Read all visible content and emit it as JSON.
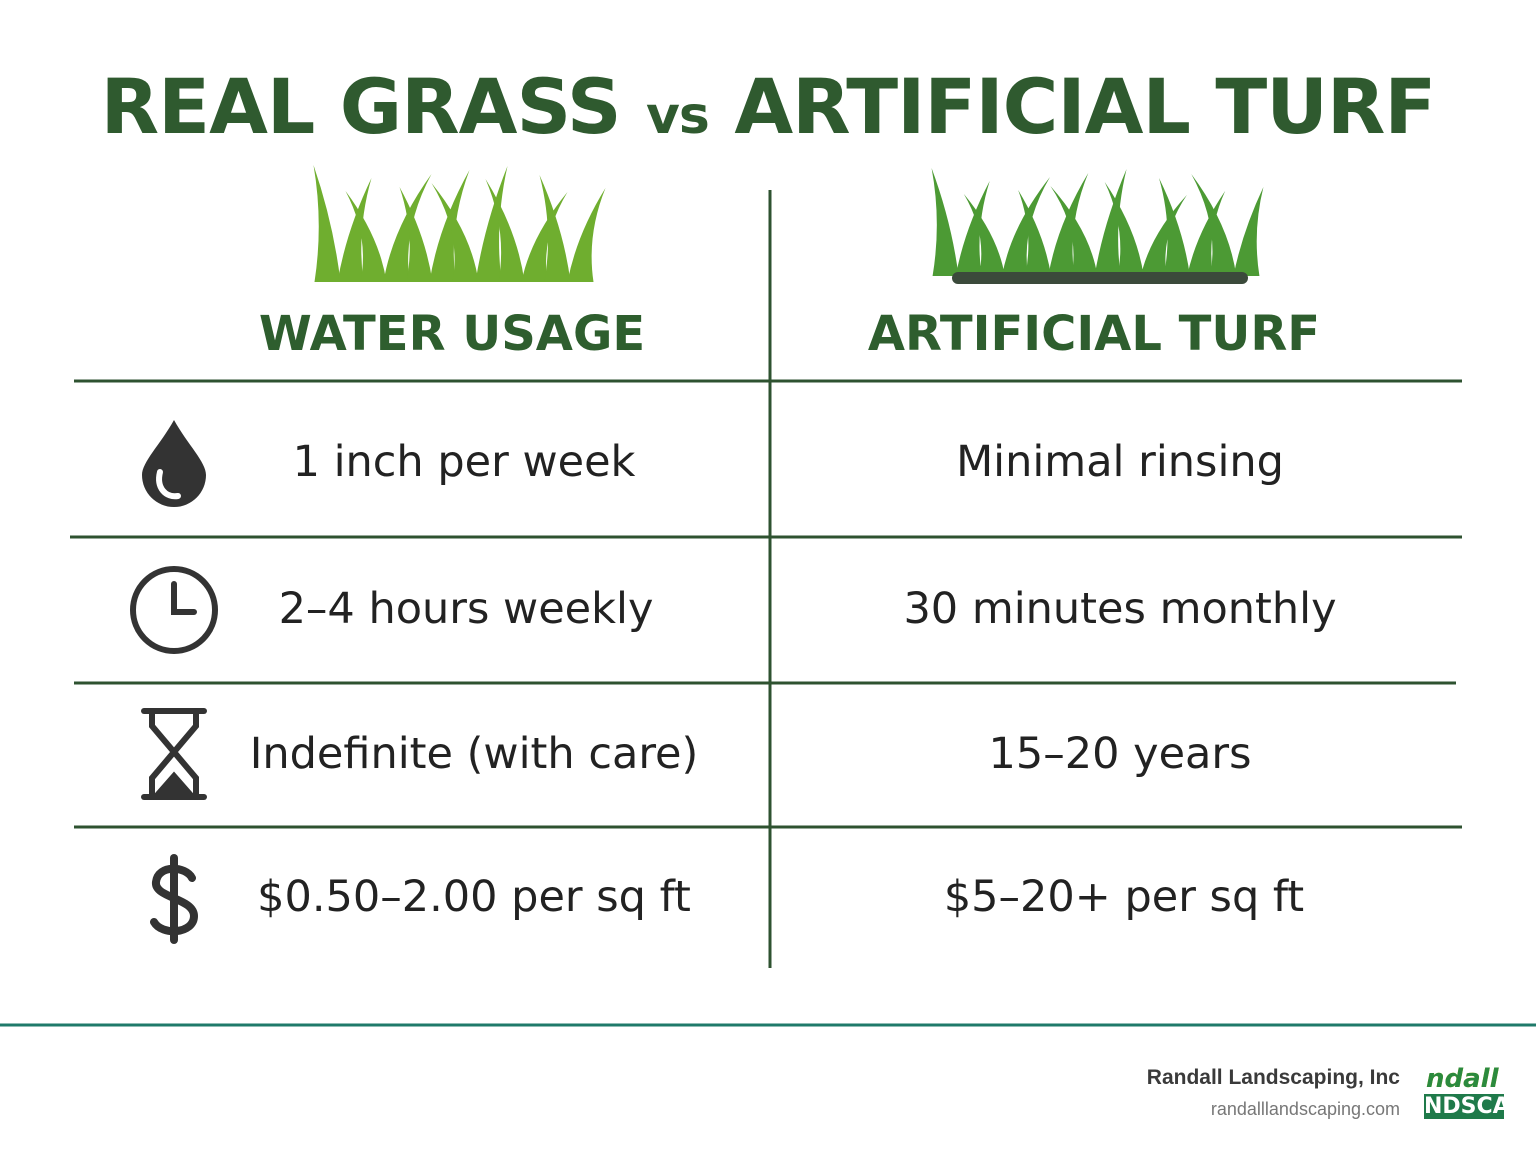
{
  "title": {
    "left": "REAL GRASS",
    "middle": "vs",
    "right": "ARTIFICIAL TURF"
  },
  "table": {
    "headers": [
      "WATER USAGE",
      "ARTIFICIAL TURF"
    ],
    "rows": [
      [
        "1 inch per week",
        "Minimal rinsing"
      ],
      [
        "2–4 hours weekly",
        "30 minutes monthly"
      ],
      [
        "Indefinite (with care)",
        "15–20 years"
      ],
      [
        "$0.50–2.00 per sq ft",
        "$5–20+ per sq ft"
      ]
    ]
  },
  "footer": {
    "company": "Randall Landscaping, Inc",
    "website": "randalllandscaping.com"
  },
  "logo": {
    "top": "ndall",
    "bottom": "NDSCAP"
  }
}
